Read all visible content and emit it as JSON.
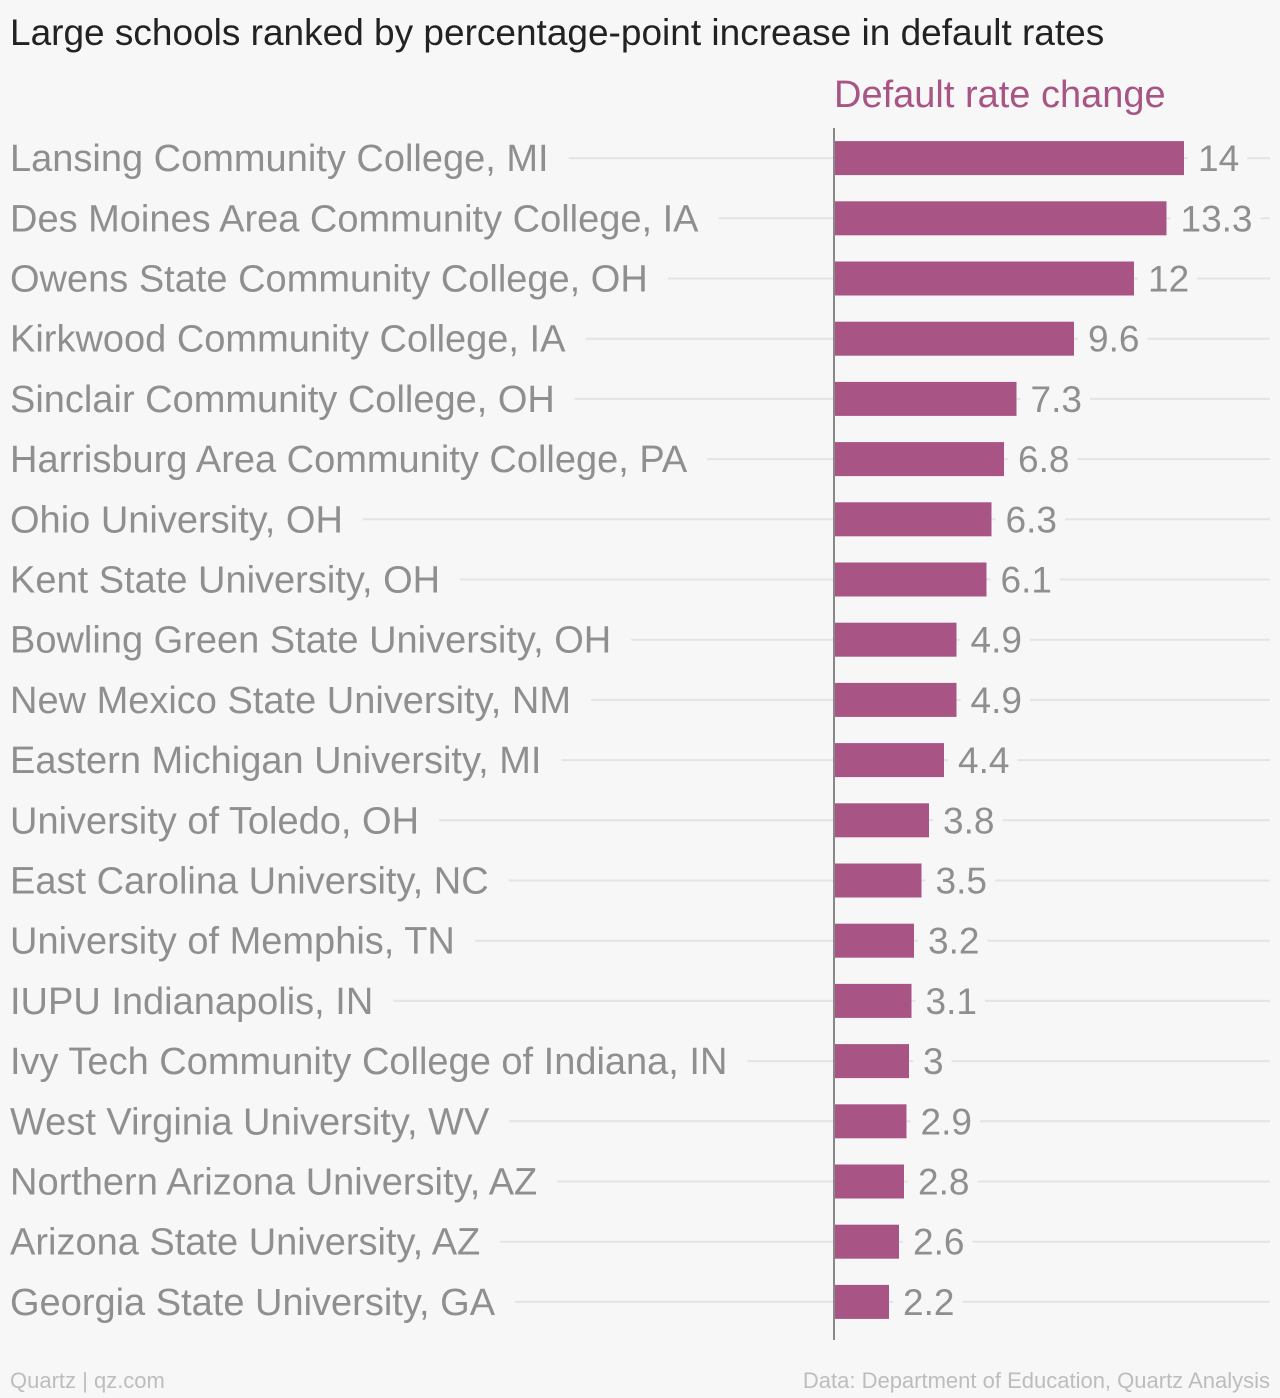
{
  "chart_data": {
    "type": "bar",
    "orientation": "horizontal",
    "title": "Large schools ranked by percentage-point increase in default rates",
    "series": [
      {
        "name": "Default rate change",
        "color": "#a85585",
        "values": [
          14,
          13.3,
          12,
          9.6,
          7.3,
          6.8,
          6.3,
          6.1,
          4.9,
          4.9,
          4.4,
          3.8,
          3.5,
          3.2,
          3.1,
          3,
          2.9,
          2.8,
          2.6,
          2.2
        ]
      }
    ],
    "categories": [
      "Lansing Community College, MI",
      "Des Moines Area Community College, IA",
      "Owens State Community College, OH",
      "Kirkwood Community College, IA",
      "Sinclair Community College, OH",
      "Harrisburg Area Community College, PA",
      "Ohio University, OH",
      "Kent State University, OH",
      "Bowling Green State University, OH",
      "New Mexico State University, NM",
      "Eastern Michigan University, MI",
      "University of Toledo, OH",
      "East Carolina University, NC",
      "University of Memphis, TN",
      "IUPU Indianapolis, IN",
      "Ivy Tech Community College of Indiana, IN",
      "West Virginia University, WV",
      "Northern Arizona University, AZ",
      "Arizona State University, AZ",
      "Georgia State University, GA"
    ],
    "value_labels": [
      "14",
      "13.3",
      "12",
      "9.6",
      "7.3",
      "6.8",
      "6.3",
      "6.1",
      "4.9",
      "4.9",
      "4.4",
      "3.8",
      "3.5",
      "3.2",
      "3.1",
      "3",
      "2.9",
      "2.8",
      "2.6",
      "2.2"
    ],
    "xlim": [
      0,
      14
    ],
    "grid": true,
    "legend": "top"
  },
  "footer": {
    "source_left": "Quartz | qz.com",
    "source_right": "Data: Department of Education, Quartz Analysis"
  }
}
